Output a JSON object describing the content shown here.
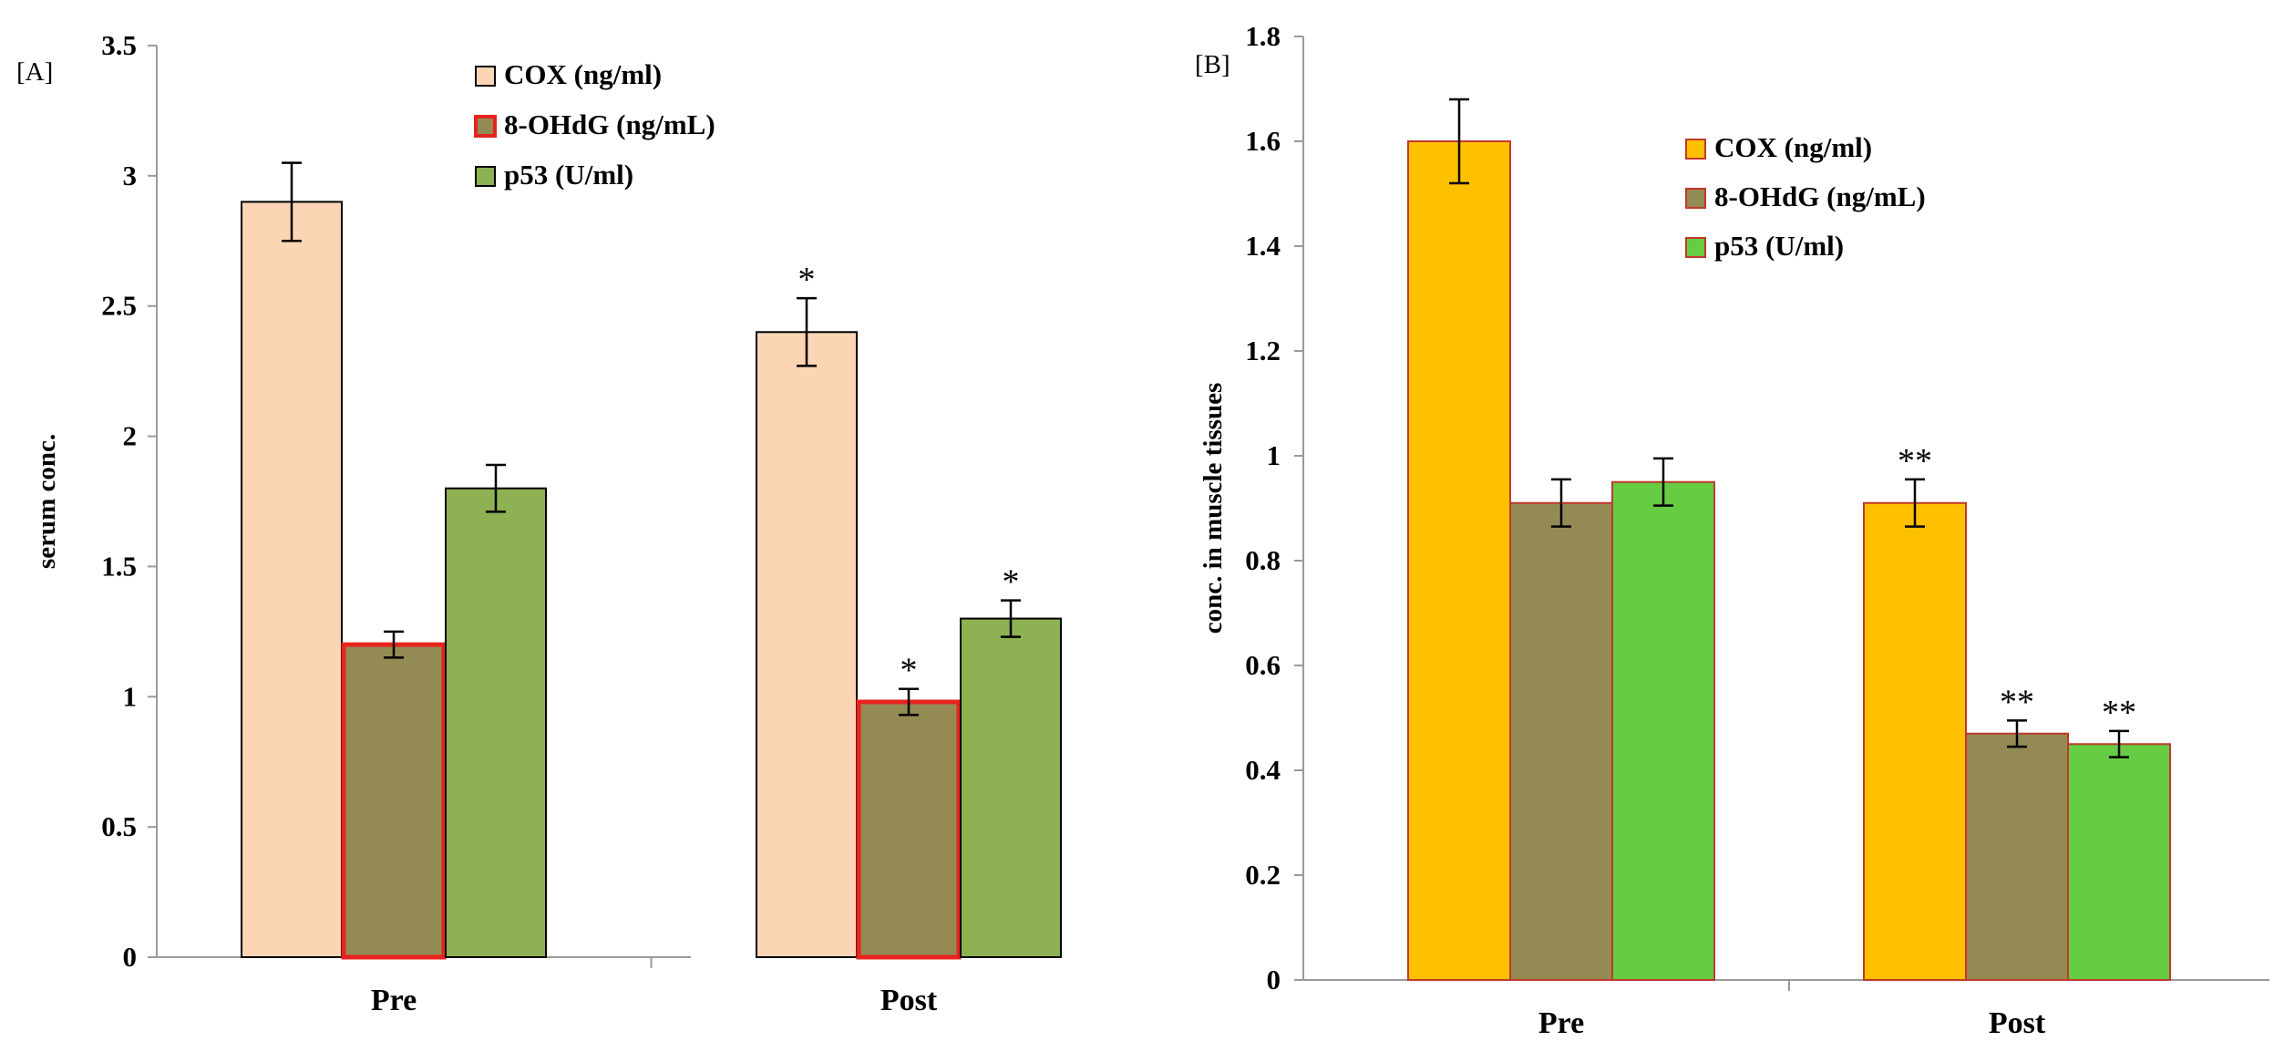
{
  "chart_data": [
    {
      "type": "bar",
      "panel_label": "[A]",
      "categories": [
        "Pre",
        "Post"
      ],
      "ylabel": "serum conc.",
      "xlabel": "",
      "ylim": [
        0,
        3.5
      ],
      "y_ticks": [
        0,
        0.5,
        1,
        1.5,
        2,
        2.5,
        3,
        3.5
      ],
      "y_tick_labels": [
        "0",
        "0.5",
        "1",
        "1.5",
        "2",
        "2.5",
        "3",
        "3.5"
      ],
      "series": [
        {
          "name": "COX (ng/ml)",
          "values": [
            2.9,
            2.4
          ],
          "errors": [
            0.15,
            0.13
          ],
          "significance": [
            "",
            "*"
          ],
          "fill": "#FCD5B5",
          "stroke": "#000000"
        },
        {
          "name": "8-OHdG (ng/mL)",
          "values": [
            1.2,
            0.98
          ],
          "errors": [
            0.05,
            0.05
          ],
          "significance": [
            "",
            "*"
          ],
          "fill": "#948A54",
          "stroke": "#E8231E"
        },
        {
          "name": "p53 (U/ml)",
          "values": [
            1.8,
            1.3
          ],
          "errors": [
            0.09,
            0.07
          ],
          "significance": [
            "",
            "*"
          ],
          "fill": "#8DB153",
          "stroke": "#000000"
        }
      ],
      "legend_position": "top-right"
    },
    {
      "type": "bar",
      "panel_label": "[B]",
      "categories": [
        "Pre",
        "Post"
      ],
      "ylabel": "conc. in muscle tissues",
      "xlabel": "",
      "ylim": [
        0,
        1.8
      ],
      "y_ticks": [
        0,
        0.2,
        0.4,
        0.6,
        0.8,
        1,
        1.2,
        1.4,
        1.6,
        1.8
      ],
      "y_tick_labels": [
        "0",
        "0.2",
        "0.4",
        "0.6",
        "0.8",
        "1",
        "1.2",
        "1.4",
        "1.6",
        "1.8"
      ],
      "series": [
        {
          "name": "COX (ng/ml)",
          "values": [
            1.6,
            0.91
          ],
          "errors": [
            0.08,
            0.045
          ],
          "significance": [
            "",
            "**"
          ],
          "fill": "#FFC000",
          "stroke": "#C0392B"
        },
        {
          "name": "8-OHdG (ng/mL)",
          "values": [
            0.91,
            0.47
          ],
          "errors": [
            0.045,
            0.025
          ],
          "significance": [
            "",
            "**"
          ],
          "fill": "#948A54",
          "stroke": "#C0392B"
        },
        {
          "name": "p53 (U/ml)",
          "values": [
            0.95,
            0.45
          ],
          "errors": [
            0.045,
            0.025
          ],
          "significance": [
            "",
            "**"
          ],
          "fill": "#66CC44",
          "stroke": "#C0392B"
        }
      ],
      "legend_position": "top-right"
    }
  ]
}
